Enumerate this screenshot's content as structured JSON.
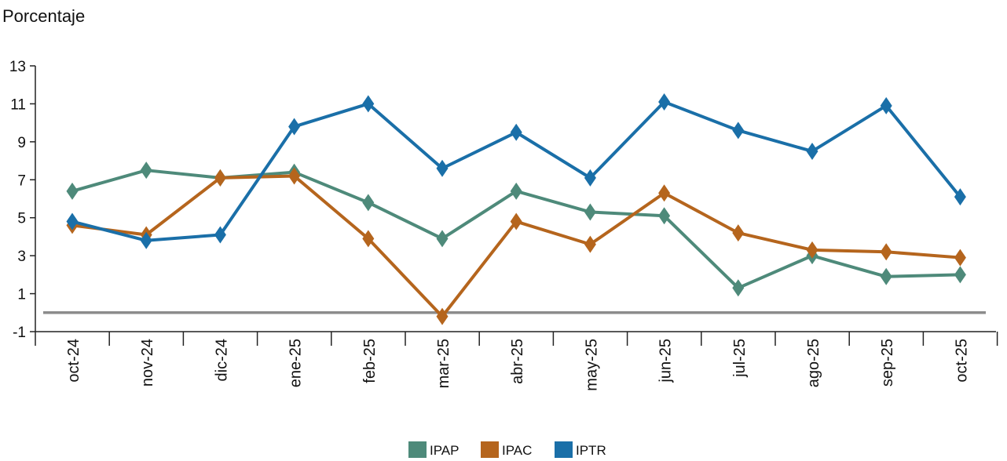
{
  "chart_data": {
    "type": "line",
    "title": "",
    "ylabel": "Porcentaje",
    "xlabel": "",
    "ylim": [
      -1,
      13
    ],
    "yticks": [
      -1,
      1,
      3,
      5,
      7,
      9,
      11,
      13
    ],
    "categories": [
      "oct-24",
      "nov-24",
      "dic-24",
      "ene-25",
      "feb-25",
      "mar-25",
      "abr-25",
      "may-25",
      "jun-25",
      "jul-25",
      "ago-25",
      "sep-25",
      "oct-25"
    ],
    "reference_line": 0,
    "legend_position": "bottom-center",
    "series": [
      {
        "name": "IPAP",
        "color": "#4e8a7a",
        "values": [
          6.4,
          7.5,
          7.1,
          7.4,
          5.8,
          3.9,
          6.4,
          5.3,
          5.1,
          1.3,
          3.0,
          1.9,
          2.0
        ]
      },
      {
        "name": "IPAC",
        "color": "#b5651d",
        "values": [
          4.6,
          4.1,
          7.1,
          7.2,
          3.9,
          -0.2,
          4.8,
          3.6,
          6.3,
          4.2,
          3.3,
          3.2,
          2.9
        ]
      },
      {
        "name": "IPTR",
        "color": "#1a6fa8",
        "values": [
          4.8,
          3.8,
          4.1,
          9.8,
          11.0,
          7.6,
          9.5,
          7.1,
          11.1,
          9.6,
          8.5,
          10.9,
          6.1
        ]
      }
    ]
  }
}
